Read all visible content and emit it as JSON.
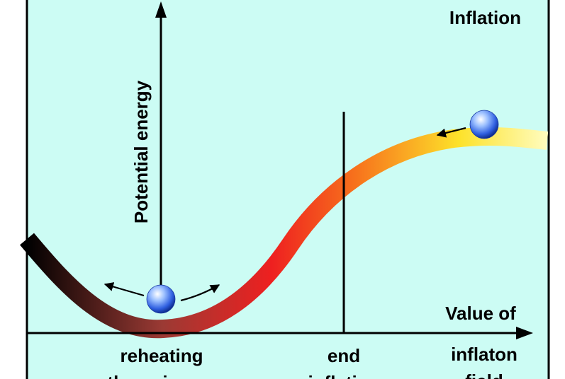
{
  "title": "Inflation",
  "y_axis_label": "Potential energy",
  "x_axis_label": {
    "line1": "Value of",
    "line2": "inflaton",
    "line3": "field"
  },
  "annotations": {
    "reheating": {
      "line1": "reheating",
      "line2": "the universe"
    },
    "end": {
      "line1": "end",
      "line2": "inflation"
    }
  },
  "colors": {
    "background": "#ccfcf4",
    "curve_stops": [
      "#000000",
      "#9b3a34",
      "#ee2020",
      "#f7711c",
      "#fde22a",
      "#fffcbe"
    ],
    "ball": "#2f5fe0",
    "frame": "#000000"
  },
  "icons": [
    "ball-icon",
    "arrow-left-icon",
    "arrow-up-left-icon",
    "arrow-up-right-icon"
  ]
}
